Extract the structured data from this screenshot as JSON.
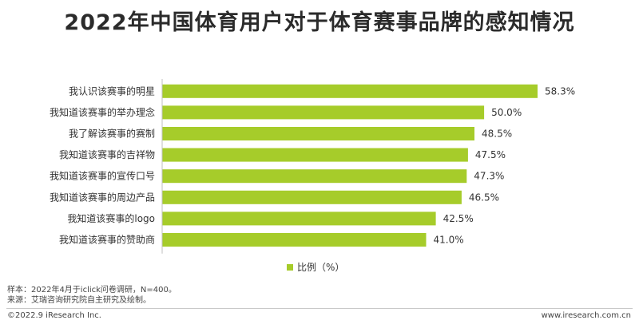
{
  "title": "2022年中国体育用户对于体育赛事品牌的感知情况",
  "chart_data": {
    "type": "bar",
    "orientation": "horizontal",
    "categories": [
      "我认识该赛事的明星",
      "我知道该赛事的举办理念",
      "我了解该赛事的赛制",
      "我知道该赛事的吉祥物",
      "我知道该赛事的宣传口号",
      "我知道该赛事的周边产品",
      "我知道该赛事的logo",
      "我知道该赛事的赞助商"
    ],
    "series": [
      {
        "name": "比例（%）",
        "values": [
          58.3,
          50.0,
          48.5,
          47.5,
          47.3,
          46.5,
          42.5,
          41.0
        ],
        "labels": [
          "58.3%",
          "50.0%",
          "48.5%",
          "47.5%",
          "47.3%",
          "46.5%",
          "42.5%",
          "41.0%"
        ]
      }
    ],
    "xlim": [
      0,
      70
    ],
    "grid": false,
    "legend": "bottom-center",
    "bar_color": "#a6cc2a"
  },
  "notes": {
    "sample": "样本：2022年4月于iclick问卷调研，N=400。",
    "source": "来源：艾瑞咨询研究院自主研究及绘制。"
  },
  "footer": {
    "copyright": "©2022.9 iResearch Inc.",
    "website": "www.iresearch.com.cn"
  }
}
